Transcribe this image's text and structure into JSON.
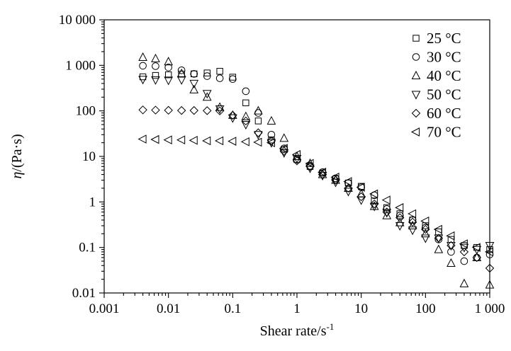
{
  "chart_data": {
    "type": "scatter",
    "xscale": "log",
    "yscale": "log",
    "xlim": [
      0.001,
      1000
    ],
    "ylim": [
      0.01,
      10000
    ],
    "xticks": [
      0.001,
      0.01,
      0.1,
      1,
      10,
      100,
      1000
    ],
    "xtick_labels": [
      "0.001",
      "0.01",
      "0.1",
      "1",
      "10",
      "100",
      "1 000"
    ],
    "yticks": [
      0.01,
      0.1,
      1,
      10,
      100,
      1000,
      10000
    ],
    "ytick_labels": [
      "0.01",
      "0.1",
      "1",
      "10",
      "100",
      "1 000",
      "10 000"
    ],
    "xlabel_main": "Shear rate/s",
    "xlabel_sup": "-1",
    "ylabel_italic": "η",
    "ylabel_rest": "/(Pa·s)",
    "grid": false,
    "legend_position": "top-right",
    "series": [
      {
        "name": "25 °C",
        "marker": "square",
        "x": [
          0.004,
          0.0063,
          0.01,
          0.016,
          0.025,
          0.04,
          0.063,
          0.1,
          0.16,
          0.25,
          0.4,
          0.63,
          1,
          1.6,
          2.5,
          4,
          6.3,
          10,
          16,
          25,
          40,
          63,
          100,
          160,
          250,
          400,
          630,
          1000
        ],
        "y": [
          560,
          600,
          620,
          640,
          650,
          680,
          740,
          550,
          150,
          60,
          23,
          14,
          8.5,
          6,
          4.3,
          3.2,
          2.6,
          2.2,
          1.05,
          0.75,
          0.55,
          0.4,
          0.3,
          0.22,
          0.15,
          0.11,
          0.1,
          0.09
        ]
      },
      {
        "name": "30 °C",
        "marker": "circle",
        "x": [
          0.004,
          0.0063,
          0.01,
          0.016,
          0.025,
          0.04,
          0.063,
          0.1,
          0.16,
          0.25,
          0.4,
          0.63,
          1,
          1.6,
          2.5,
          4,
          6.3,
          10,
          16,
          25,
          40,
          63,
          100,
          160,
          250,
          400,
          630,
          1000
        ],
        "y": [
          980,
          960,
          900,
          780,
          650,
          580,
          520,
          500,
          270,
          90,
          30,
          15,
          8.5,
          6.2,
          4.5,
          3.3,
          2.6,
          2.1,
          1.4,
          0.7,
          0.5,
          0.4,
          0.27,
          0.15,
          0.08,
          0.05,
          0.06,
          0.07
        ]
      },
      {
        "name": "40 °C",
        "marker": "triangle-up",
        "x": [
          0.004,
          0.0063,
          0.01,
          0.016,
          0.025,
          0.04,
          0.063,
          0.1,
          0.16,
          0.25,
          0.4,
          0.63,
          1,
          1.6,
          2.5,
          4,
          6.3,
          10,
          16,
          25,
          40,
          63,
          100,
          160,
          250,
          400,
          630,
          1000
        ],
        "y": [
          1500,
          1400,
          1200,
          660,
          290,
          200,
          120,
          80,
          75,
          100,
          60,
          25,
          10,
          7,
          4,
          3,
          2,
          1.5,
          0.8,
          0.5,
          0.35,
          0.3,
          0.2,
          0.09,
          0.045,
          0.016,
          0.06,
          0.015
        ]
      },
      {
        "name": "50 °C",
        "marker": "triangle-down",
        "x": [
          0.004,
          0.0063,
          0.01,
          0.016,
          0.025,
          0.04,
          0.063,
          0.1,
          0.16,
          0.25,
          0.4,
          0.63,
          1,
          1.6,
          2.5,
          4,
          6.3,
          10,
          16,
          25,
          40,
          63,
          100,
          160,
          250,
          400,
          630,
          1000
        ],
        "y": [
          490,
          480,
          470,
          480,
          400,
          240,
          110,
          70,
          50,
          30,
          20,
          12,
          9,
          5.5,
          3.8,
          2.7,
          1.7,
          1.1,
          0.8,
          0.58,
          0.3,
          0.24,
          0.16,
          0.16,
          0.11,
          0.1,
          0.09,
          0.11
        ]
      },
      {
        "name": "60 °C",
        "marker": "diamond",
        "x": [
          0.004,
          0.0063,
          0.01,
          0.016,
          0.025,
          0.04,
          0.063,
          0.1,
          0.16,
          0.25,
          0.4,
          0.63,
          1,
          1.6,
          2.5,
          4,
          6.3,
          10,
          16,
          25,
          40,
          63,
          100,
          160,
          250,
          400,
          630,
          1000
        ],
        "y": [
          105,
          104,
          103,
          102,
          102,
          101,
          100,
          80,
          60,
          33,
          22,
          13,
          8,
          6,
          4,
          3,
          2,
          1.3,
          0.9,
          0.6,
          0.45,
          0.36,
          0.25,
          0.16,
          0.11,
          0.08,
          0.06,
          0.035
        ]
      },
      {
        "name": "70 °C",
        "marker": "triangle-left",
        "x": [
          0.004,
          0.0063,
          0.01,
          0.016,
          0.025,
          0.04,
          0.063,
          0.1,
          0.16,
          0.25,
          0.4,
          0.63,
          1,
          1.6,
          2.5,
          4,
          6.3,
          10,
          16,
          25,
          40,
          63,
          100,
          160,
          250,
          400,
          630,
          1000
        ],
        "y": [
          24,
          23.5,
          23,
          23,
          22.5,
          22,
          22,
          21.5,
          21,
          20.5,
          20,
          15,
          11,
          7,
          4.5,
          3.5,
          2.8,
          2.1,
          1.5,
          1.1,
          0.75,
          0.55,
          0.38,
          0.25,
          0.18,
          0.12,
          0.1,
          0.08
        ]
      }
    ]
  }
}
